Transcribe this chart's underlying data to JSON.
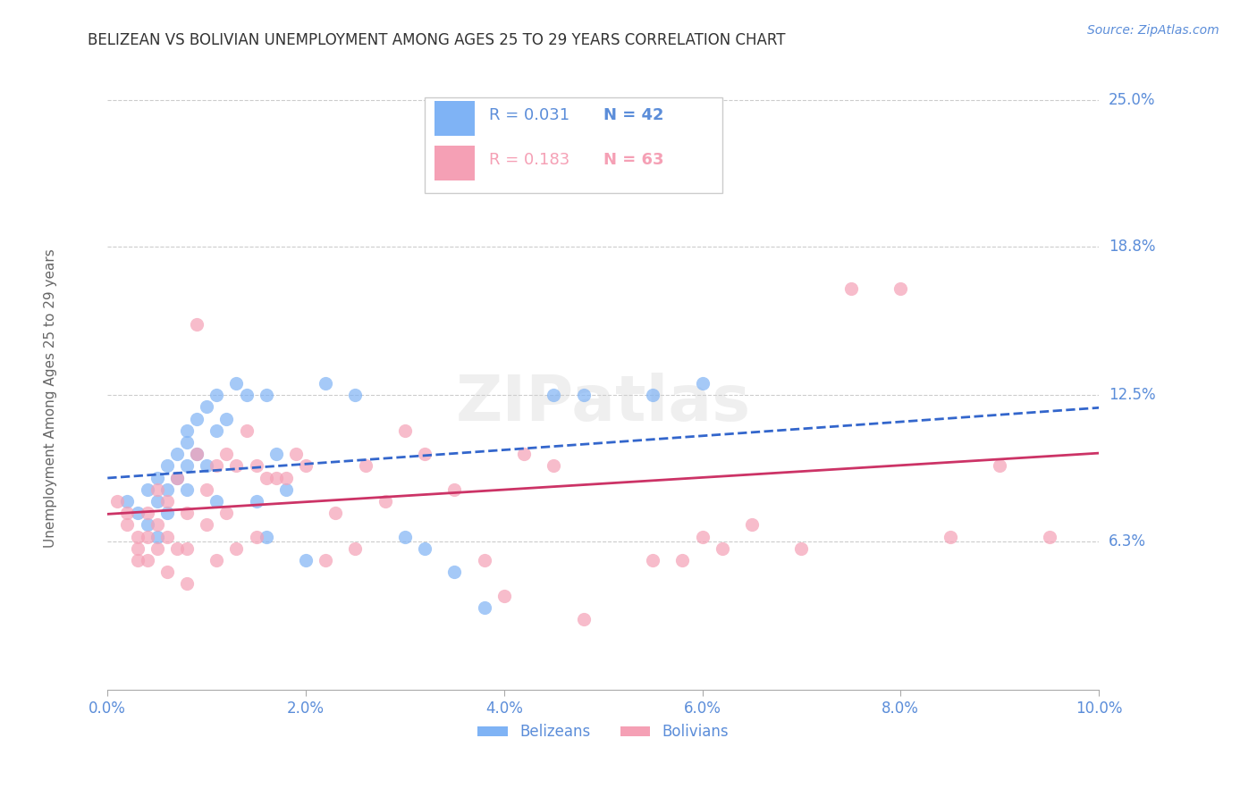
{
  "title": "BELIZEAN VS BOLIVIAN UNEMPLOYMENT AMONG AGES 25 TO 29 YEARS CORRELATION CHART",
  "source": "Source: ZipAtlas.com",
  "ylabel": "Unemployment Among Ages 25 to 29 years",
  "ytick_labels": [
    "25.0%",
    "18.8%",
    "12.5%",
    "6.3%"
  ],
  "ytick_values": [
    0.25,
    0.188,
    0.125,
    0.063
  ],
  "xmin": 0.0,
  "xmax": 0.1,
  "ymin": 0.0,
  "ymax": 0.27,
  "legend_r_belizean": "R = 0.031",
  "legend_n_belizean": "N = 42",
  "legend_r_bolivian": "R = 0.183",
  "legend_n_bolivian": "N = 63",
  "color_belizean": "#7fb3f5",
  "color_bolivian": "#f5a0b5",
  "color_trendline_belizean": "#3366cc",
  "color_trendline_bolivian": "#cc3366",
  "color_axis_labels": "#5b8dd9",
  "color_title": "#333333",
  "color_grid": "#cccccc",
  "belizean_x": [
    0.002,
    0.003,
    0.004,
    0.004,
    0.005,
    0.005,
    0.005,
    0.006,
    0.006,
    0.006,
    0.007,
    0.007,
    0.008,
    0.008,
    0.008,
    0.008,
    0.009,
    0.009,
    0.01,
    0.01,
    0.011,
    0.011,
    0.011,
    0.012,
    0.013,
    0.014,
    0.015,
    0.016,
    0.016,
    0.017,
    0.018,
    0.02,
    0.022,
    0.025,
    0.03,
    0.032,
    0.035,
    0.038,
    0.045,
    0.048,
    0.055,
    0.06
  ],
  "belizean_y": [
    0.08,
    0.075,
    0.07,
    0.085,
    0.09,
    0.08,
    0.065,
    0.095,
    0.085,
    0.075,
    0.1,
    0.09,
    0.105,
    0.095,
    0.11,
    0.085,
    0.115,
    0.1,
    0.12,
    0.095,
    0.125,
    0.11,
    0.08,
    0.115,
    0.13,
    0.125,
    0.08,
    0.125,
    0.065,
    0.1,
    0.085,
    0.055,
    0.13,
    0.125,
    0.065,
    0.06,
    0.05,
    0.035,
    0.125,
    0.125,
    0.125,
    0.13
  ],
  "bolivian_x": [
    0.001,
    0.002,
    0.002,
    0.003,
    0.003,
    0.003,
    0.004,
    0.004,
    0.004,
    0.005,
    0.005,
    0.005,
    0.006,
    0.006,
    0.006,
    0.007,
    0.007,
    0.008,
    0.008,
    0.008,
    0.009,
    0.009,
    0.01,
    0.01,
    0.011,
    0.011,
    0.012,
    0.012,
    0.013,
    0.013,
    0.014,
    0.015,
    0.015,
    0.016,
    0.017,
    0.018,
    0.019,
    0.02,
    0.022,
    0.023,
    0.025,
    0.026,
    0.028,
    0.03,
    0.032,
    0.035,
    0.038,
    0.04,
    0.042,
    0.045,
    0.048,
    0.05,
    0.055,
    0.058,
    0.06,
    0.062,
    0.065,
    0.07,
    0.075,
    0.08,
    0.085,
    0.09,
    0.095
  ],
  "bolivian_y": [
    0.08,
    0.075,
    0.07,
    0.065,
    0.06,
    0.055,
    0.075,
    0.065,
    0.055,
    0.085,
    0.07,
    0.06,
    0.08,
    0.065,
    0.05,
    0.09,
    0.06,
    0.075,
    0.06,
    0.045,
    0.155,
    0.1,
    0.085,
    0.07,
    0.095,
    0.055,
    0.1,
    0.075,
    0.095,
    0.06,
    0.11,
    0.095,
    0.065,
    0.09,
    0.09,
    0.09,
    0.1,
    0.095,
    0.055,
    0.075,
    0.06,
    0.095,
    0.08,
    0.11,
    0.1,
    0.085,
    0.055,
    0.04,
    0.1,
    0.095,
    0.03,
    0.24,
    0.055,
    0.055,
    0.065,
    0.06,
    0.07,
    0.06,
    0.17,
    0.17,
    0.065,
    0.095,
    0.065
  ]
}
